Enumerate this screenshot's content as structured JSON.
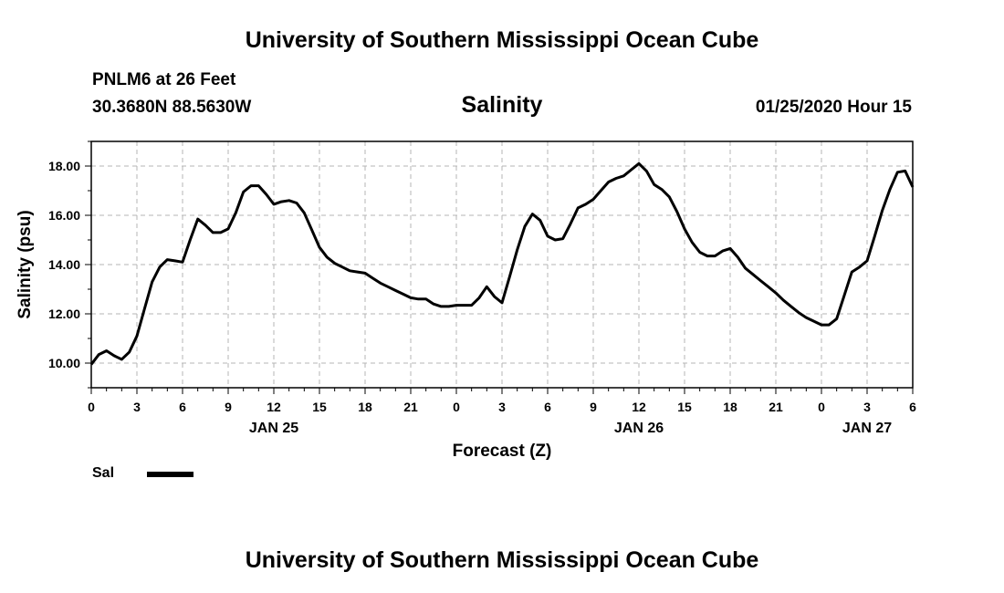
{
  "header": {
    "organization": "University of Southern Mississippi Ocean Cube",
    "station": "PNLM6 at 26 Feet",
    "coordinates": "30.3680N 88.5630W",
    "timestamp": "01/25/2020 Hour 15"
  },
  "footer": {
    "organization": "University of Southern Mississippi Ocean Cube"
  },
  "colors": {
    "line": "#000000",
    "grid": "#b4b4b4",
    "background": "#ffffff"
  },
  "chart_data": {
    "type": "line",
    "title": "Salinity",
    "xlabel": "Forecast (Z)",
    "ylabel": "Salinity (psu)",
    "x_unit": "hours from 00Z Jan 25",
    "xlim": [
      0,
      54
    ],
    "ylim": [
      9.0,
      19.0
    ],
    "yticks": [
      10.0,
      12.0,
      14.0,
      16.0,
      18.0
    ],
    "ytick_labels": [
      "10.00",
      "12.00",
      "14.00",
      "16.00",
      "18.00"
    ],
    "xticks": [
      0,
      3,
      6,
      9,
      12,
      15,
      18,
      21,
      24,
      27,
      30,
      33,
      36,
      39,
      42,
      45,
      48,
      51,
      54
    ],
    "xtick_labels": [
      "0",
      "3",
      "6",
      "9",
      "12",
      "15",
      "18",
      "21",
      "0",
      "3",
      "6",
      "9",
      "12",
      "15",
      "18",
      "21",
      "0",
      "3",
      "6"
    ],
    "date_labels": [
      {
        "x": 12,
        "text": "JAN 25"
      },
      {
        "x": 36,
        "text": "JAN 26"
      },
      {
        "x": 51,
        "text": "JAN 27"
      }
    ],
    "grid": true,
    "legend": {
      "position": "bottom-left",
      "entries": [
        "Sal"
      ]
    },
    "series": [
      {
        "name": "Sal",
        "x": [
          0,
          0.5,
          1,
          1.5,
          2,
          2.5,
          3,
          3.5,
          4,
          4.5,
          5,
          5.5,
          6,
          6.5,
          7,
          7.5,
          8,
          8.5,
          9,
          9.5,
          10,
          10.5,
          11,
          11.5,
          12,
          12.5,
          13,
          13.5,
          14,
          14.5,
          15,
          15.5,
          16,
          16.5,
          17,
          17.5,
          18,
          18.5,
          19,
          19.5,
          20,
          20.5,
          21,
          21.5,
          22,
          22.5,
          23,
          23.5,
          24,
          24.5,
          25,
          25.5,
          26,
          26.5,
          27,
          27.5,
          28,
          28.5,
          29,
          29.5,
          30,
          30.5,
          31,
          31.5,
          32,
          32.5,
          33,
          33.5,
          34,
          34.5,
          35,
          35.5,
          36,
          36.5,
          37,
          37.5,
          38,
          38.5,
          39,
          39.5,
          40,
          40.5,
          41,
          41.5,
          42,
          42.5,
          43,
          43.5,
          44,
          44.5,
          45,
          45.5,
          46,
          46.5,
          47,
          47.5,
          48,
          48.5,
          49,
          49.5,
          50,
          50.5,
          51,
          51.5,
          52,
          52.5,
          53,
          53.5,
          54
        ],
        "values": [
          9.95,
          10.35,
          10.5,
          10.3,
          10.15,
          10.45,
          11.1,
          12.2,
          13.3,
          13.9,
          14.2,
          14.15,
          14.1,
          15.0,
          15.85,
          15.6,
          15.3,
          15.3,
          15.45,
          16.1,
          16.95,
          17.2,
          17.2,
          16.85,
          16.45,
          16.55,
          16.6,
          16.5,
          16.1,
          15.4,
          14.7,
          14.3,
          14.05,
          13.9,
          13.75,
          13.7,
          13.65,
          13.45,
          13.25,
          13.1,
          12.95,
          12.8,
          12.65,
          12.6,
          12.6,
          12.4,
          12.3,
          12.3,
          12.35,
          12.35,
          12.35,
          12.65,
          13.1,
          12.7,
          12.45,
          13.5,
          14.6,
          15.55,
          16.05,
          15.8,
          15.15,
          15.0,
          15.05,
          15.65,
          16.3,
          16.45,
          16.65,
          17.0,
          17.35,
          17.5,
          17.6,
          17.85,
          18.1,
          17.8,
          17.25,
          17.05,
          16.75,
          16.15,
          15.45,
          14.9,
          14.5,
          14.35,
          14.35,
          14.55,
          14.65,
          14.3,
          13.85,
          13.6,
          13.35,
          13.1,
          12.85,
          12.55,
          12.3,
          12.05,
          11.85,
          11.7,
          11.55,
          11.55,
          11.8,
          12.75,
          13.7,
          13.9,
          14.15,
          15.15,
          16.2,
          17.05,
          17.75,
          17.8,
          17.15
        ]
      }
    ]
  }
}
